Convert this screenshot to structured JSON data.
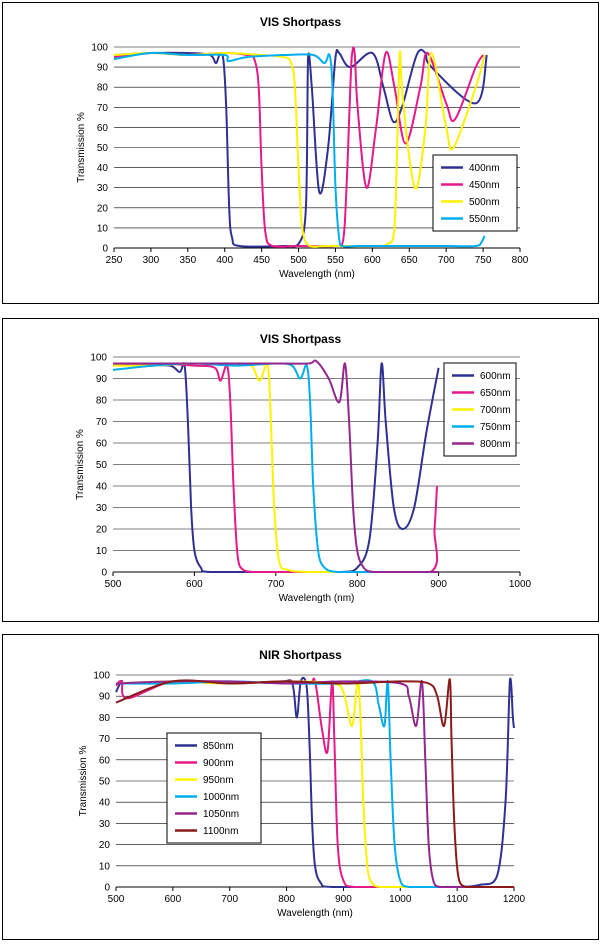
{
  "chart_data": [
    {
      "type": "line",
      "title": "VIS Shortpass",
      "xlabel": "Wavelength (nm)",
      "ylabel": "Transmission %",
      "xlim": [
        250,
        800
      ],
      "ylim": [
        0,
        100
      ],
      "xticks": [
        250,
        300,
        350,
        400,
        450,
        500,
        550,
        600,
        650,
        700,
        750,
        800
      ],
      "yticks": [
        0,
        10,
        20,
        30,
        40,
        50,
        60,
        70,
        80,
        90,
        100
      ],
      "grid": "horizontal",
      "legend_position": "lower-right",
      "series": [
        {
          "name": "400nm",
          "color": "#2e3192",
          "x": [
            250,
            300,
            350,
            380,
            388,
            393,
            398,
            402,
            406,
            410,
            420,
            480,
            500,
            510,
            513,
            518,
            528,
            540,
            550,
            555,
            570,
            600,
            615,
            628,
            640,
            660,
            672,
            680,
            740,
            755
          ],
          "y": [
            96,
            97,
            97,
            96,
            92,
            96,
            94,
            70,
            20,
            5,
            1,
            1,
            2,
            20,
            95,
            80,
            28,
            50,
            95,
            97,
            90,
            97,
            80,
            63,
            70,
            96,
            97,
            90,
            72,
            96
          ]
        },
        {
          "name": "450nm",
          "color": "#e6198a",
          "x": [
            250,
            300,
            350,
            400,
            430,
            440,
            446,
            450,
            455,
            465,
            500,
            550,
            560,
            565,
            572,
            576,
            580,
            592,
            605,
            618,
            630,
            645,
            665,
            675,
            700,
            712,
            740,
            750
          ],
          "y": [
            95,
            97,
            96,
            97,
            96,
            94,
            80,
            40,
            8,
            1,
            1,
            1,
            3,
            30,
            95,
            97,
            70,
            30,
            60,
            97,
            80,
            52,
            80,
            97,
            72,
            64,
            90,
            96
          ]
        },
        {
          "name": "500nm",
          "color": "#fff200",
          "x": [
            250,
            300,
            350,
            400,
            450,
            480,
            490,
            495,
            500,
            505,
            515,
            540,
            600,
            620,
            630,
            637,
            640,
            650,
            660,
            672,
            680,
            700,
            710,
            740,
            752
          ],
          "y": [
            96,
            97,
            96,
            97,
            96,
            95,
            92,
            80,
            40,
            10,
            1,
            1,
            1,
            2,
            10,
            97,
            80,
            45,
            30,
            60,
            97,
            60,
            50,
            80,
            96
          ]
        },
        {
          "name": "550nm",
          "color": "#00aeef",
          "x": [
            250,
            300,
            350,
            400,
            405,
            430,
            480,
            520,
            535,
            542,
            546,
            550,
            555,
            560,
            580,
            620,
            700,
            740,
            748,
            752
          ],
          "y": [
            94,
            97,
            96,
            96,
            93,
            95,
            96,
            96,
            92,
            96,
            80,
            30,
            5,
            1,
            1,
            1,
            1,
            1,
            3,
            6
          ]
        }
      ]
    },
    {
      "type": "line",
      "title": "VIS Shortpass",
      "xlabel": "Wavelength (nm)",
      "ylabel": "Transmission %",
      "xlim": [
        500,
        1000
      ],
      "ylim": [
        0,
        100
      ],
      "xticks": [
        500,
        600,
        700,
        800,
        900,
        1000
      ],
      "yticks": [
        0,
        10,
        20,
        30,
        40,
        50,
        60,
        70,
        80,
        90,
        100
      ],
      "grid": "horizontal",
      "legend_position": "top-right",
      "series": [
        {
          "name": "600nm",
          "color": "#2e3192",
          "x": [
            500,
            540,
            570,
            582,
            588,
            592,
            596,
            600,
            608,
            620,
            700,
            780,
            800,
            815,
            825,
            830,
            835,
            845,
            856,
            870,
            885,
            900
          ],
          "y": [
            97,
            96,
            96,
            93,
            96,
            70,
            30,
            10,
            2,
            0,
            0,
            0,
            2,
            15,
            60,
            97,
            70,
            30,
            20,
            30,
            65,
            95
          ]
        },
        {
          "name": "650nm",
          "color": "#e6198a",
          "x": [
            500,
            550,
            600,
            625,
            632,
            640,
            644,
            648,
            653,
            660,
            675,
            700,
            800,
            890,
            895,
            898
          ],
          "y": [
            96,
            97,
            96,
            95,
            89,
            96,
            80,
            40,
            8,
            1,
            0,
            0,
            0,
            0,
            20,
            40
          ]
        },
        {
          "name": "700nm",
          "color": "#fff200",
          "x": [
            500,
            550,
            600,
            650,
            670,
            680,
            690,
            694,
            698,
            704,
            715,
            740,
            800,
            900
          ],
          "y": [
            96,
            96,
            97,
            96,
            96,
            89,
            96,
            70,
            30,
            5,
            1,
            0,
            0,
            0
          ]
        },
        {
          "name": "750nm",
          "color": "#00aeef",
          "x": [
            500,
            550,
            600,
            650,
            700,
            720,
            730,
            738,
            742,
            746,
            752,
            760,
            775,
            800,
            900
          ],
          "y": [
            94,
            96,
            97,
            96,
            97,
            96,
            90,
            96,
            80,
            40,
            10,
            2,
            0,
            0,
            0
          ]
        },
        {
          "name": "800nm",
          "color": "#92278f",
          "x": [
            500,
            600,
            700,
            740,
            750,
            765,
            778,
            785,
            790,
            795,
            800,
            808,
            820,
            850,
            900
          ],
          "y": [
            97,
            97,
            97,
            97,
            98,
            90,
            79,
            97,
            70,
            30,
            10,
            2,
            0,
            0,
            0
          ]
        }
      ]
    },
    {
      "type": "line",
      "title": "NIR Shortpass",
      "xlabel": "Wavelength (nm)",
      "ylabel": "Transmission %",
      "xlim": [
        500,
        1200
      ],
      "ylim": [
        0,
        100
      ],
      "xticks": [
        500,
        600,
        700,
        800,
        900,
        1000,
        1100,
        1200
      ],
      "yticks": [
        0,
        10,
        20,
        30,
        40,
        50,
        60,
        70,
        80,
        90,
        100
      ],
      "grid": "horizontal",
      "legend_position": "left",
      "series": [
        {
          "name": "850nm",
          "color": "#2e3192",
          "x": [
            500,
            510,
            520,
            600,
            700,
            790,
            810,
            818,
            825,
            835,
            840,
            845,
            850,
            860,
            880,
            1000,
            1100,
            1140,
            1170,
            1185,
            1193,
            1198,
            1200
          ],
          "y": [
            92,
            97,
            96,
            97,
            96,
            97,
            96,
            80,
            97,
            95,
            70,
            30,
            10,
            2,
            0,
            0,
            0,
            1,
            5,
            40,
            98,
            80,
            75
          ]
        },
        {
          "name": "900nm",
          "color": "#e6198a",
          "x": [
            500,
            510,
            520,
            600,
            700,
            800,
            840,
            850,
            862,
            872,
            880,
            884,
            890,
            900,
            920,
            1000,
            1200
          ],
          "y": [
            95,
            97,
            89,
            97,
            96,
            97,
            96,
            97,
            75,
            64,
            97,
            70,
            20,
            3,
            0,
            0,
            0
          ]
        },
        {
          "name": "950nm",
          "color": "#fff200",
          "x": [
            500,
            600,
            700,
            800,
            880,
            900,
            915,
            925,
            930,
            935,
            942,
            950,
            965,
            1000,
            1200
          ],
          "y": [
            96,
            97,
            96,
            97,
            96,
            92,
            76,
            97,
            80,
            40,
            10,
            2,
            0,
            0,
            0
          ]
        },
        {
          "name": "1000nm",
          "color": "#00aeef",
          "x": [
            500,
            600,
            700,
            800,
            900,
            950,
            962,
            972,
            978,
            983,
            990,
            1000,
            1015,
            1050,
            1200
          ],
          "y": [
            96,
            96,
            97,
            96,
            96,
            97,
            86,
            76,
            97,
            60,
            20,
            3,
            0,
            0,
            0
          ]
        },
        {
          "name": "1050nm",
          "color": "#92278f",
          "x": [
            500,
            600,
            700,
            800,
            900,
            1000,
            1015,
            1028,
            1038,
            1044,
            1050,
            1058,
            1070,
            1100,
            1200
          ],
          "y": [
            96,
            97,
            97,
            96,
            97,
            96,
            90,
            76,
            97,
            60,
            20,
            3,
            0,
            0,
            0
          ]
        },
        {
          "name": "1100nm",
          "color": "#8b1a1a",
          "x": [
            500,
            600,
            700,
            800,
            900,
            1000,
            1050,
            1065,
            1077,
            1087,
            1090,
            1095,
            1102,
            1115,
            1130,
            1200
          ],
          "y": [
            87,
            97,
            96,
            97,
            96,
            97,
            96,
            90,
            76,
            98,
            70,
            30,
            5,
            0,
            0,
            0
          ]
        }
      ]
    }
  ]
}
